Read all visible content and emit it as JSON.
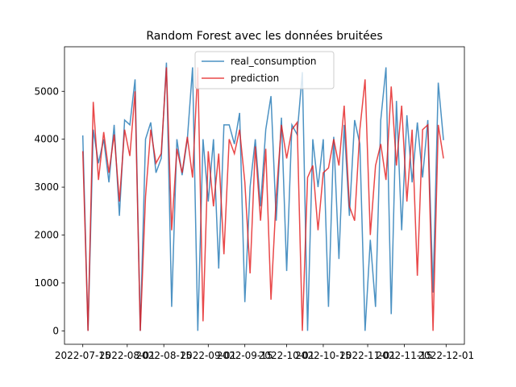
{
  "chart_data": {
    "type": "line",
    "title": "Random Forest avec les données bruitées",
    "x": [
      "2022-07-15",
      "2022-07-17",
      "2022-07-19",
      "2022-07-21",
      "2022-07-23",
      "2022-07-25",
      "2022-07-27",
      "2022-07-29",
      "2022-07-31",
      "2022-08-02",
      "2022-08-04",
      "2022-08-06",
      "2022-08-08",
      "2022-08-10",
      "2022-08-12",
      "2022-08-14",
      "2022-08-16",
      "2022-08-18",
      "2022-08-20",
      "2022-08-22",
      "2022-08-24",
      "2022-08-26",
      "2022-08-28",
      "2022-08-30",
      "2022-09-01",
      "2022-09-03",
      "2022-09-05",
      "2022-09-07",
      "2022-09-09",
      "2022-09-11",
      "2022-09-13",
      "2022-09-15",
      "2022-09-17",
      "2022-09-19",
      "2022-09-21",
      "2022-09-23",
      "2022-09-25",
      "2022-09-27",
      "2022-09-29",
      "2022-10-01",
      "2022-10-03",
      "2022-10-05",
      "2022-10-07",
      "2022-10-09",
      "2022-10-11",
      "2022-10-13",
      "2022-10-15",
      "2022-10-17",
      "2022-10-19",
      "2022-10-21",
      "2022-10-23",
      "2022-10-25",
      "2022-10-27",
      "2022-10-29",
      "2022-10-31",
      "2022-11-02",
      "2022-11-04",
      "2022-11-06",
      "2022-11-08",
      "2022-11-10",
      "2022-11-12",
      "2022-11-14",
      "2022-11-16",
      "2022-11-18",
      "2022-11-20",
      "2022-11-22",
      "2022-11-24",
      "2022-11-26",
      "2022-11-28",
      "2022-11-30"
    ],
    "series": [
      {
        "name": "real_consumption",
        "color": "#1f77b4",
        "values": [
          4080,
          0,
          4200,
          3500,
          4000,
          3100,
          4300,
          2400,
          4400,
          4300,
          5250,
          0,
          4000,
          4350,
          3300,
          3600,
          5600,
          500,
          4000,
          3250,
          4000,
          5500,
          0,
          4000,
          2700,
          4000,
          1300,
          4300,
          4300,
          3900,
          4550,
          600,
          3000,
          4000,
          2600,
          4200,
          4900,
          2300,
          4450,
          1250,
          4300,
          4100,
          5400,
          0,
          4000,
          3000,
          4000,
          500,
          4050,
          1500,
          4300,
          2400,
          4400,
          3900,
          0,
          1900,
          500,
          4400,
          5500,
          350,
          4800,
          2100,
          4500,
          3100,
          4350,
          3200,
          4400,
          800,
          5180,
          3980
        ]
      },
      {
        "name": "prediction",
        "color": "#e41a1c",
        "values": [
          3750,
          0,
          4780,
          3150,
          4150,
          3300,
          4100,
          2700,
          4200,
          3650,
          5000,
          0,
          2800,
          4200,
          3500,
          3700,
          5500,
          2100,
          3800,
          3300,
          4050,
          3200,
          5500,
          200,
          3750,
          2600,
          3700,
          1600,
          4000,
          3700,
          4200,
          3100,
          1200,
          3850,
          2300,
          3800,
          650,
          2800,
          4300,
          3600,
          4200,
          4350,
          0,
          3200,
          3450,
          2100,
          3300,
          3400,
          4000,
          3450,
          4700,
          2600,
          2300,
          4200,
          5250,
          2000,
          3450,
          3900,
          3150,
          5100,
          3450,
          4700,
          2700,
          4200,
          1150,
          4200,
          4300,
          0,
          4300,
          3600
        ]
      }
    ],
    "xlim": [
      "2022-07-08",
      "2022-12-08"
    ],
    "xticks": [
      "2022-07-15",
      "2022-08-01",
      "2022-08-15",
      "2022-09-01",
      "2022-09-15",
      "2022-10-01",
      "2022-10-15",
      "2022-11-01",
      "2022-11-15",
      "2022-12-01"
    ],
    "ylim": [
      -280,
      5930
    ],
    "yticks": [
      0,
      1000,
      2000,
      3000,
      4000,
      5000
    ],
    "legend": "upper center"
  }
}
